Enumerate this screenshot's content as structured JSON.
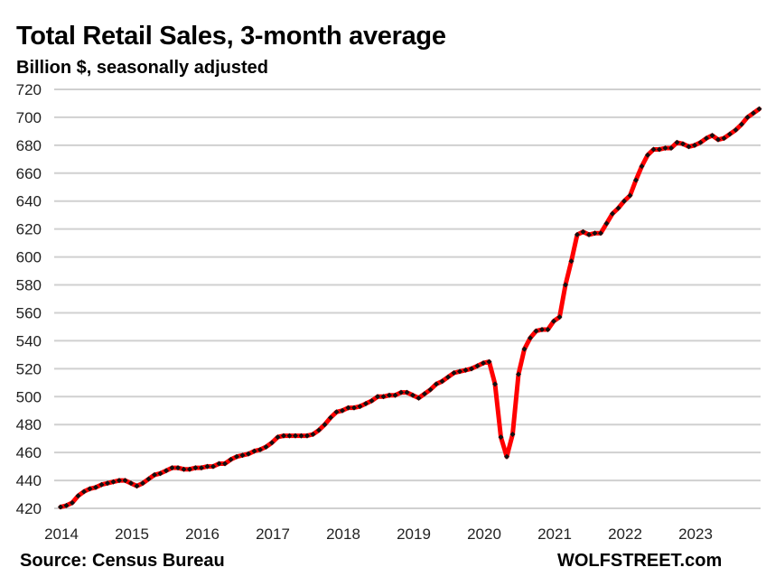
{
  "chart_data": {
    "type": "line",
    "title": "Total Retail Sales, 3-month average",
    "subtitle": "Billion $, seasonally adjusted",
    "xlabel": "",
    "ylabel": "Billion $",
    "ylim": [
      420,
      720
    ],
    "yticks": [
      420,
      440,
      460,
      480,
      500,
      520,
      540,
      560,
      580,
      600,
      620,
      640,
      660,
      680,
      700,
      720
    ],
    "xticks": [
      "2014",
      "2015",
      "2016",
      "2017",
      "2018",
      "2019",
      "2020",
      "2021",
      "2022",
      "2023"
    ],
    "x_start": "2014-01",
    "x_frequency": "monthly",
    "grid": true,
    "series": [
      {
        "name": "Total Retail Sales, 3-month average",
        "color": "#ff0000",
        "marker_color": "#111111",
        "values": [
          421,
          422,
          424,
          429,
          432,
          434,
          435,
          437,
          438,
          439,
          440,
          440,
          438,
          436,
          438,
          441,
          444,
          445,
          447,
          449,
          449,
          448,
          448,
          449,
          449,
          450,
          450,
          452,
          452,
          455,
          457,
          458,
          459,
          461,
          462,
          464,
          467,
          471,
          472,
          472,
          472,
          472,
          472,
          473,
          476,
          480,
          485,
          489,
          490,
          492,
          492,
          493,
          495,
          497,
          500,
          500,
          501,
          501,
          503,
          503,
          501,
          499,
          502,
          505,
          509,
          511,
          514,
          517,
          518,
          519,
          520,
          522,
          524,
          525,
          509,
          471,
          457,
          473,
          516,
          534,
          542,
          547,
          548,
          548,
          554,
          557,
          580,
          597,
          616,
          618,
          616,
          617,
          617,
          624,
          631,
          635,
          640,
          644,
          655,
          665,
          673,
          677,
          677,
          678,
          678,
          682,
          681,
          679,
          680,
          682,
          685,
          687,
          684,
          685,
          688,
          691,
          695,
          700,
          703,
          706
        ]
      }
    ]
  },
  "footer": {
    "source": "Source: Census Bureau",
    "brand": "WOLFSTREET.com"
  }
}
